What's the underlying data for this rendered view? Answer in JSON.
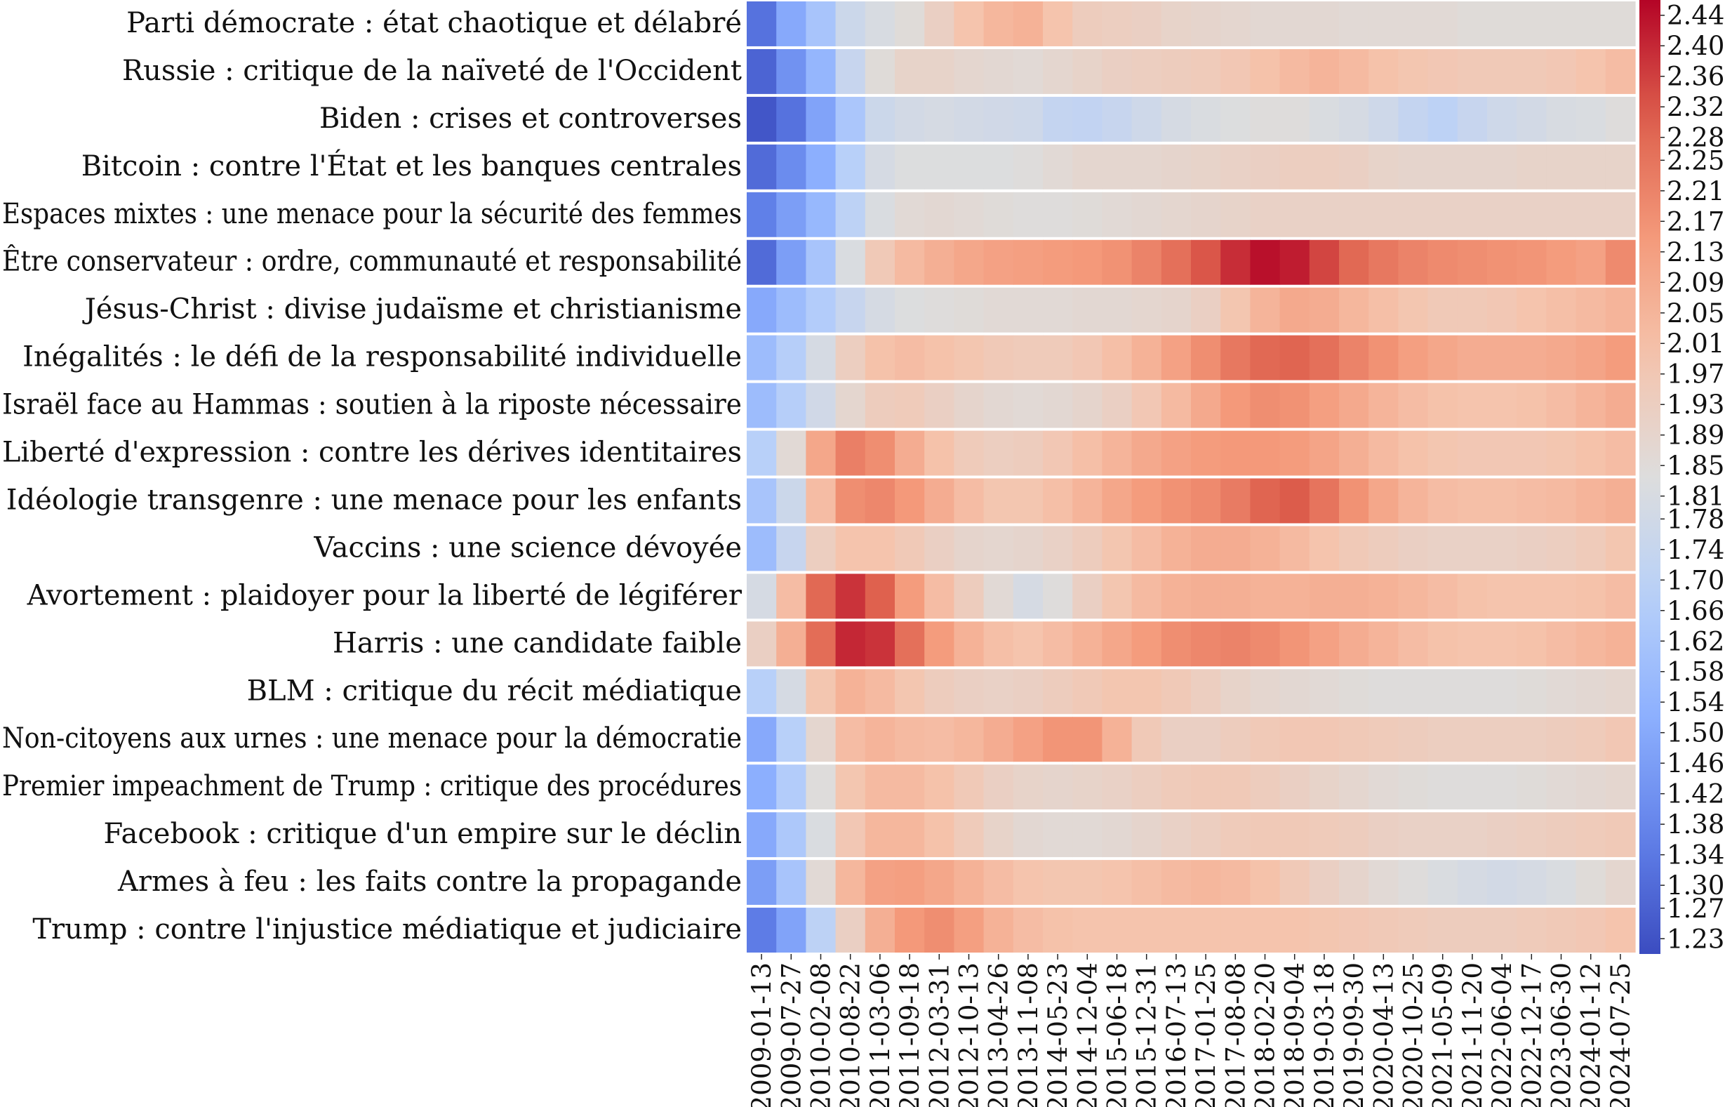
{
  "chart_data": {
    "type": "heatmap",
    "colormap": "coolwarm",
    "vmin": 1.21,
    "vmax": 2.46,
    "rows": [
      "Parti démocrate : état chaotique et délabré",
      "Russie : critique de la naïveté de l'Occident",
      "Biden : crises et controverses",
      "Bitcoin : contre l'État et les banques centrales",
      "Espaces mixtes : une menace pour la sécurité des femmes",
      "Être conservateur : ordre, communauté et responsabilité",
      "Jésus-Christ : divise judaïsme et christianisme",
      "Inégalités : le défi de la responsabilité individuelle",
      "Israël face au Hammas : soutien à la riposte nécessaire",
      "Liberté d'expression : contre les dérives identitaires",
      "Idéologie transgenre : une menace pour les enfants",
      "Vaccins : une science dévoyée",
      "Avortement : plaidoyer pour la liberté de légiférer",
      "Harris : une candidate faible",
      "BLM : critique du récit médiatique",
      "Non-citoyens aux urnes : une menace pour la démocratie",
      "Premier impeachment de Trump : critique des procédures",
      "Facebook : critique d'un empire sur le déclin",
      "Armes à feu : les faits contre la propagande",
      "Trump : contre l'injustice médiatique et judiciaire"
    ],
    "x_tick_labels": [
      "2009-01-13",
      "2009-07-27",
      "2010-02-08",
      "2010-08-22",
      "2011-03-06",
      "2011-09-18",
      "2012-03-31",
      "2012-10-13",
      "2013-04-26",
      "2013-11-08",
      "2014-05-23",
      "2014-12-04",
      "2015-06-18",
      "2015-12-31",
      "2016-07-13",
      "2017-01-25",
      "2017-08-08",
      "2018-02-20",
      "2018-09-04",
      "2019-03-18",
      "2019-09-30",
      "2020-04-13",
      "2020-10-25",
      "2021-05-09",
      "2021-11-20",
      "2022-06-04",
      "2022-12-17",
      "2023-06-30",
      "2024-01-12",
      "2024-07-25"
    ],
    "colorbar_ticks": [
      "2.44",
      "2.40",
      "2.36",
      "2.32",
      "2.28",
      "2.25",
      "2.21",
      "2.17",
      "2.13",
      "2.09",
      "2.05",
      "2.01",
      "1.97",
      "1.93",
      "1.89",
      "1.85",
      "1.81",
      "1.78",
      "1.74",
      "1.70",
      "1.66",
      "1.62",
      "1.58",
      "1.54",
      "1.50",
      "1.46",
      "1.42",
      "1.38",
      "1.34",
      "1.30",
      "1.27",
      "1.23"
    ],
    "values": [
      [
        1.32,
        1.5,
        1.62,
        1.76,
        1.81,
        1.85,
        1.92,
        1.99,
        2.04,
        2.06,
        1.99,
        1.94,
        1.93,
        1.92,
        1.9,
        1.89,
        1.88,
        1.87,
        1.87,
        1.87,
        1.86,
        1.86,
        1.86,
        1.86,
        1.85,
        1.85,
        1.85,
        1.85,
        1.85,
        1.85
      ],
      [
        1.28,
        1.42,
        1.55,
        1.74,
        1.85,
        1.9,
        1.9,
        1.88,
        1.87,
        1.86,
        1.88,
        1.9,
        1.92,
        1.93,
        1.94,
        1.95,
        1.97,
        2.0,
        2.03,
        2.05,
        2.03,
        2.0,
        1.98,
        1.97,
        1.96,
        1.96,
        1.96,
        1.97,
        1.99,
        2.02
      ],
      [
        1.24,
        1.32,
        1.48,
        1.63,
        1.76,
        1.79,
        1.8,
        1.79,
        1.78,
        1.77,
        1.73,
        1.72,
        1.74,
        1.77,
        1.8,
        1.82,
        1.83,
        1.84,
        1.84,
        1.82,
        1.8,
        1.77,
        1.73,
        1.7,
        1.74,
        1.77,
        1.79,
        1.81,
        1.82,
        1.84
      ],
      [
        1.3,
        1.4,
        1.52,
        1.68,
        1.8,
        1.83,
        1.83,
        1.83,
        1.83,
        1.84,
        1.86,
        1.88,
        1.88,
        1.88,
        1.89,
        1.9,
        1.91,
        1.92,
        1.93,
        1.93,
        1.92,
        1.9,
        1.89,
        1.89,
        1.89,
        1.89,
        1.9,
        1.9,
        1.9,
        1.9
      ],
      [
        1.36,
        1.46,
        1.56,
        1.7,
        1.82,
        1.86,
        1.87,
        1.86,
        1.85,
        1.84,
        1.84,
        1.85,
        1.86,
        1.87,
        1.88,
        1.89,
        1.9,
        1.91,
        1.91,
        1.91,
        1.91,
        1.91,
        1.91,
        1.91,
        1.91,
        1.91,
        1.91,
        1.91,
        1.91,
        1.91
      ],
      [
        1.3,
        1.46,
        1.62,
        1.82,
        1.96,
        2.03,
        2.07,
        2.1,
        2.12,
        2.13,
        2.14,
        2.15,
        2.17,
        2.21,
        2.26,
        2.32,
        2.39,
        2.44,
        2.42,
        2.35,
        2.28,
        2.24,
        2.21,
        2.19,
        2.18,
        2.17,
        2.16,
        2.14,
        2.12,
        2.19
      ],
      [
        1.5,
        1.58,
        1.66,
        1.74,
        1.8,
        1.83,
        1.84,
        1.85,
        1.86,
        1.86,
        1.86,
        1.87,
        1.87,
        1.88,
        1.89,
        1.92,
        1.98,
        2.05,
        2.09,
        2.08,
        2.04,
        2.01,
        1.98,
        1.96,
        1.96,
        1.97,
        1.99,
        2.01,
        2.03,
        2.05
      ],
      [
        1.58,
        1.67,
        1.8,
        1.93,
        2.0,
        2.02,
        2.0,
        1.98,
        1.96,
        1.95,
        1.95,
        1.97,
        2.01,
        2.06,
        2.12,
        2.18,
        2.24,
        2.28,
        2.29,
        2.26,
        2.21,
        2.17,
        2.13,
        2.1,
        2.08,
        2.08,
        2.08,
        2.09,
        2.11,
        2.14
      ],
      [
        1.58,
        1.67,
        1.78,
        1.88,
        1.94,
        1.95,
        1.92,
        1.89,
        1.87,
        1.86,
        1.87,
        1.89,
        1.92,
        1.97,
        2.03,
        2.09,
        2.15,
        2.18,
        2.17,
        2.13,
        2.09,
        2.05,
        2.02,
        2.0,
        1.99,
        1.99,
        2.0,
        2.02,
        2.05,
        2.08
      ],
      [
        1.68,
        1.86,
        2.1,
        2.22,
        2.18,
        2.08,
        2.0,
        1.95,
        1.93,
        1.94,
        1.97,
        2.01,
        2.05,
        2.09,
        2.12,
        2.14,
        2.15,
        2.15,
        2.14,
        2.11,
        2.07,
        2.03,
        2.0,
        1.98,
        1.97,
        1.97,
        1.97,
        1.98,
        2.0,
        2.02
      ],
      [
        1.62,
        1.76,
        2.02,
        2.18,
        2.2,
        2.15,
        2.08,
        2.02,
        1.98,
        1.98,
        2.01,
        2.05,
        2.1,
        2.14,
        2.17,
        2.19,
        2.23,
        2.29,
        2.31,
        2.25,
        2.17,
        2.1,
        2.05,
        2.02,
        2.01,
        2.01,
        2.02,
        2.03,
        2.05,
        2.07
      ],
      [
        1.58,
        1.74,
        1.93,
        1.99,
        1.99,
        1.96,
        1.92,
        1.89,
        1.88,
        1.89,
        1.91,
        1.94,
        1.98,
        2.02,
        2.06,
        2.08,
        2.08,
        2.06,
        2.03,
        1.99,
        1.96,
        1.94,
        1.92,
        1.91,
        1.91,
        1.91,
        1.92,
        1.93,
        1.95,
        1.98
      ],
      [
        1.8,
        2.02,
        2.28,
        2.38,
        2.3,
        2.14,
        2.02,
        1.94,
        1.86,
        1.8,
        1.84,
        1.92,
        1.98,
        2.03,
        2.06,
        2.07,
        2.07,
        2.06,
        2.06,
        2.07,
        2.07,
        2.06,
        2.04,
        2.02,
        2.0,
        1.99,
        1.99,
        1.99,
        2.0,
        2.02
      ],
      [
        1.92,
        2.07,
        2.27,
        2.4,
        2.38,
        2.26,
        2.14,
        2.06,
        2.01,
        1.99,
        2.02,
        2.06,
        2.1,
        2.14,
        2.18,
        2.2,
        2.21,
        2.19,
        2.16,
        2.12,
        2.08,
        2.05,
        2.02,
        2.0,
        1.99,
        1.99,
        2.0,
        2.02,
        2.04,
        2.06
      ],
      [
        1.68,
        1.8,
        1.98,
        2.06,
        2.03,
        1.98,
        1.94,
        1.92,
        1.91,
        1.92,
        1.94,
        1.96,
        1.98,
        1.98,
        1.96,
        1.93,
        1.9,
        1.88,
        1.87,
        1.86,
        1.85,
        1.84,
        1.84,
        1.84,
        1.84,
        1.84,
        1.85,
        1.86,
        1.87,
        1.88
      ],
      [
        1.5,
        1.68,
        1.88,
        2.02,
        2.05,
        2.03,
        2.02,
        2.04,
        2.08,
        2.12,
        2.16,
        2.16,
        2.06,
        1.96,
        1.92,
        1.92,
        1.94,
        1.96,
        1.97,
        1.97,
        1.96,
        1.95,
        1.94,
        1.93,
        1.93,
        1.93,
        1.93,
        1.94,
        1.95,
        1.97
      ],
      [
        1.52,
        1.66,
        1.84,
        1.98,
        2.03,
        2.03,
        2.0,
        1.96,
        1.92,
        1.9,
        1.89,
        1.9,
        1.91,
        1.93,
        1.95,
        1.96,
        1.96,
        1.94,
        1.92,
        1.9,
        1.88,
        1.86,
        1.85,
        1.84,
        1.84,
        1.84,
        1.85,
        1.86,
        1.87,
        1.88
      ],
      [
        1.5,
        1.64,
        1.82,
        1.97,
        2.04,
        2.04,
        2.0,
        1.95,
        1.9,
        1.87,
        1.86,
        1.86,
        1.87,
        1.89,
        1.91,
        1.93,
        1.95,
        1.96,
        1.96,
        1.95,
        1.94,
        1.92,
        1.91,
        1.91,
        1.91,
        1.92,
        1.93,
        1.94,
        1.95,
        1.96
      ],
      [
        1.46,
        1.62,
        1.86,
        2.04,
        2.12,
        2.13,
        2.1,
        2.06,
        2.02,
        1.99,
        1.98,
        1.98,
        1.99,
        2.01,
        2.03,
        2.04,
        2.03,
        2.0,
        1.96,
        1.92,
        1.89,
        1.86,
        1.84,
        1.82,
        1.8,
        1.79,
        1.8,
        1.82,
        1.85,
        1.88
      ],
      [
        1.35,
        1.48,
        1.7,
        1.92,
        2.07,
        2.15,
        2.18,
        2.13,
        2.06,
        2.02,
        2.0,
        1.99,
        1.99,
        1.99,
        1.99,
        1.99,
        1.99,
        1.99,
        1.99,
        1.98,
        1.97,
        1.96,
        1.95,
        1.94,
        1.94,
        1.94,
        1.95,
        1.96,
        1.97,
        1.99
      ]
    ]
  }
}
